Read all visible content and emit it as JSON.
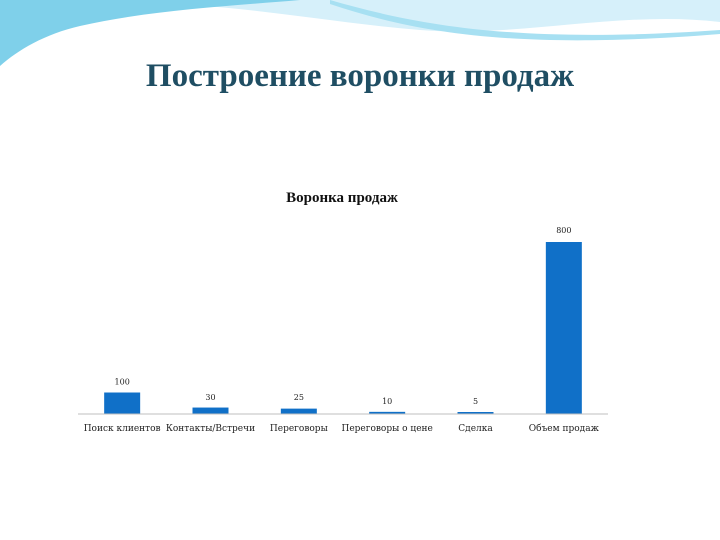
{
  "slide": {
    "title": "Построение воронки продаж"
  },
  "colors": {
    "bar": "#1070c8",
    "axis": "#bfbfbf",
    "title": "#1f4e63",
    "wave_dark": "#7fd0ea",
    "wave_light": "#d6f0fa"
  },
  "chart_data": {
    "type": "bar",
    "title": "Воронка продаж",
    "categories": [
      "Поиск клиентов",
      "Контакты/Встречи",
      "Переговоры",
      "Переговоры о цене",
      "Сделка",
      "Объем продаж"
    ],
    "values": [
      100,
      30,
      25,
      10,
      5,
      800
    ],
    "data_labels": [
      "100",
      "30",
      "25",
      "10",
      "5",
      "800"
    ],
    "ylim": [
      0,
      800
    ],
    "grid": false,
    "legend": "none"
  }
}
